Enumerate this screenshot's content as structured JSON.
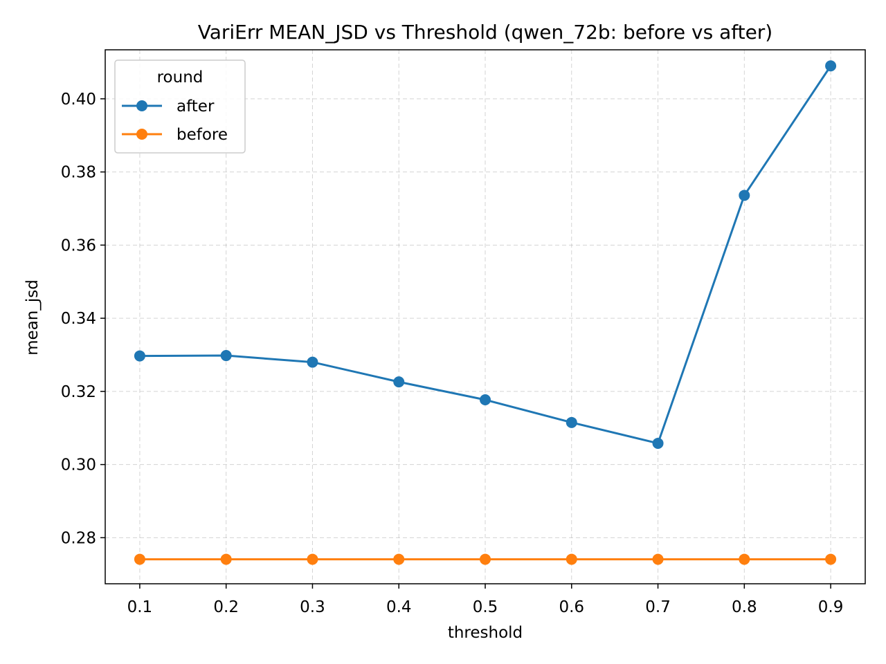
{
  "chart_data": {
    "type": "line",
    "title": "VariErr MEAN_JSD vs Threshold (qwen_72b: before vs after)",
    "xlabel": "threshold",
    "ylabel": "mean_jsd",
    "x": [
      0.1,
      0.2,
      0.3,
      0.4,
      0.5,
      0.6,
      0.7,
      0.8,
      0.9
    ],
    "x_tick_labels": [
      "0.1",
      "0.2",
      "0.3",
      "0.4",
      "0.5",
      "0.6",
      "0.7",
      "0.8",
      "0.9"
    ],
    "y_ticks": [
      0.28,
      0.3,
      0.32,
      0.34,
      0.36,
      0.38,
      0.4
    ],
    "y_tick_labels": [
      "0.28",
      "0.30",
      "0.32",
      "0.34",
      "0.36",
      "0.38",
      "0.40"
    ],
    "xlim": [
      0.06,
      0.94
    ],
    "ylim": [
      0.2674,
      0.4134
    ],
    "grid": true,
    "legend": {
      "title": "round",
      "placement": "upper-left"
    },
    "series": [
      {
        "name": "after",
        "color": "#1f77b4",
        "marker": "circle",
        "values": [
          0.3297,
          0.3298,
          0.328,
          0.3226,
          0.3177,
          0.3115,
          0.3058,
          0.3736,
          0.409
        ]
      },
      {
        "name": "before",
        "color": "#ff7f0e",
        "marker": "circle",
        "values": [
          0.2741,
          0.2741,
          0.2741,
          0.2741,
          0.2741,
          0.2741,
          0.2741,
          0.2741,
          0.2741
        ]
      }
    ]
  }
}
